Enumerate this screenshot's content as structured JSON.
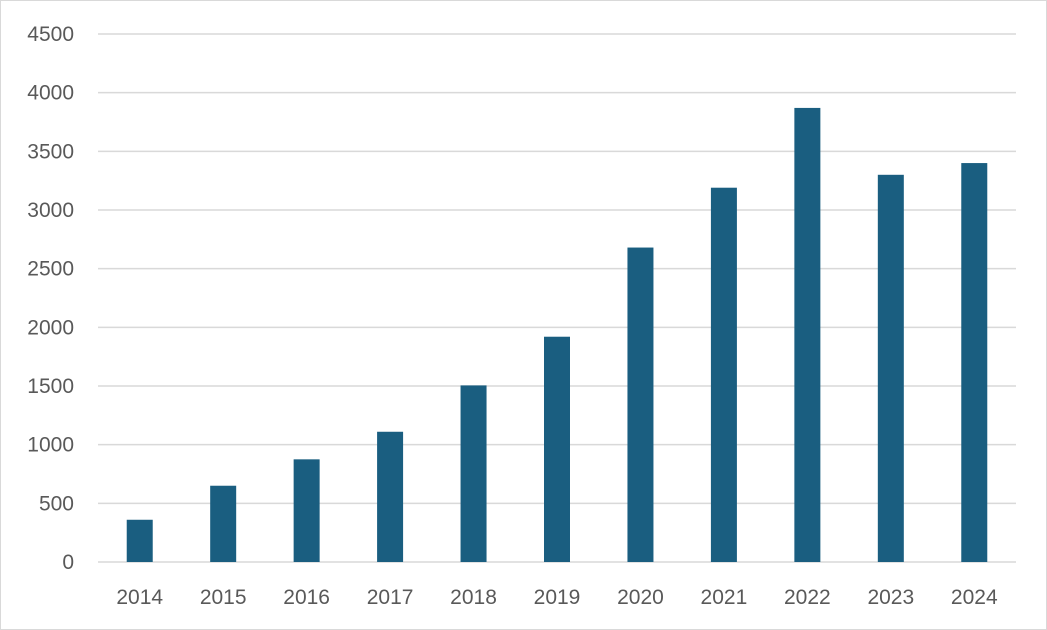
{
  "chart_data": {
    "type": "bar",
    "title": "",
    "xlabel": "",
    "ylabel": "",
    "categories": [
      "2014",
      "2015",
      "2016",
      "2017",
      "2018",
      "2019",
      "2020",
      "2021",
      "2022",
      "2023",
      "2024"
    ],
    "values": [
      360,
      650,
      875,
      1110,
      1505,
      1920,
      2680,
      3190,
      3870,
      3300,
      3400
    ],
    "ylim": [
      0,
      4500
    ],
    "yticks": [
      0,
      500,
      1000,
      1500,
      2000,
      2500,
      3000,
      3500,
      4000,
      4500
    ],
    "grid": true,
    "legend": "none",
    "colors": {
      "bar": "#1a5e80",
      "gridline": "#d9d9d9",
      "tick_text": "#595959",
      "frame": "#d9d9d9"
    }
  }
}
